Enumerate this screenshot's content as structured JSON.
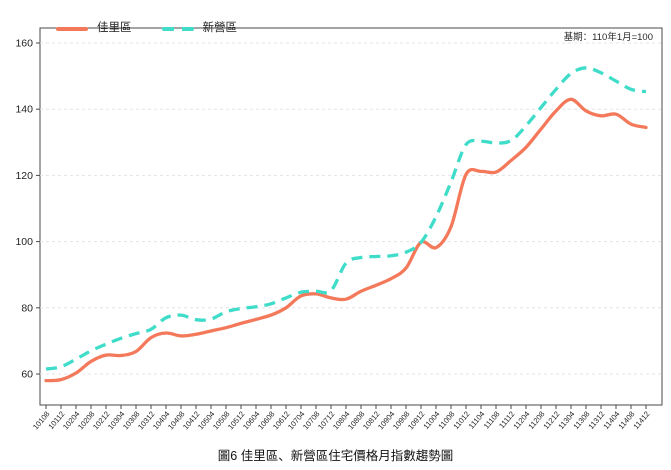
{
  "chart_data": {
    "type": "line",
    "title": "圖6 佳里區、新營區住宅價格月指數趨勢圖",
    "note": "基期：110年1月=100",
    "xlabel": "",
    "ylabel": "",
    "ylim": [
      50,
      165
    ],
    "yticks": [
      60,
      80,
      100,
      120,
      140,
      160
    ],
    "grid": "horizontal-dashed",
    "legend_position": "top-left-inside",
    "categories": [
      "10108",
      "10112",
      "10204",
      "10208",
      "10212",
      "10304",
      "10308",
      "10312",
      "10404",
      "10408",
      "10412",
      "10504",
      "10508",
      "10512",
      "10604",
      "10608",
      "10612",
      "10704",
      "10708",
      "10712",
      "10804",
      "10808",
      "10812",
      "10904",
      "10908",
      "10912",
      "11004",
      "11008",
      "11012",
      "11104",
      "11108",
      "11112",
      "11204",
      "11208",
      "11212",
      "11304",
      "11308",
      "11312",
      "11404",
      "11408",
      "11412"
    ],
    "series": [
      {
        "name": "佳里區",
        "color": "#f4795b",
        "dash": "solid",
        "values": [
          58.0,
          58.3,
          60.3,
          63.8,
          65.7,
          65.6,
          66.8,
          71.0,
          72.4,
          71.5,
          72.0,
          73.0,
          74.0,
          75.3,
          76.5,
          77.8,
          80.0,
          83.6,
          84.2,
          83.0,
          82.6,
          85.0,
          86.8,
          88.8,
          92.0,
          99.8,
          98.2,
          104.5,
          120.3,
          121.2,
          121.0,
          124.5,
          128.5,
          134.0,
          139.5,
          143.0,
          139.5,
          138.0,
          138.5,
          135.5,
          134.5
        ]
      },
      {
        "name": "新營區",
        "color": "#3edcc9",
        "dash": "dashed",
        "values": [
          61.5,
          62.2,
          64.5,
          67.0,
          69.0,
          70.8,
          72.2,
          73.5,
          77.0,
          77.8,
          76.4,
          76.6,
          78.8,
          79.8,
          80.3,
          81.2,
          83.0,
          84.7,
          85.0,
          85.2,
          93.5,
          95.2,
          95.5,
          95.7,
          96.8,
          99.8,
          107.5,
          118.0,
          129.3,
          130.3,
          129.8,
          130.5,
          135.0,
          140.5,
          146.0,
          150.8,
          152.5,
          151.0,
          148.5,
          146.0,
          145.3
        ]
      }
    ]
  }
}
